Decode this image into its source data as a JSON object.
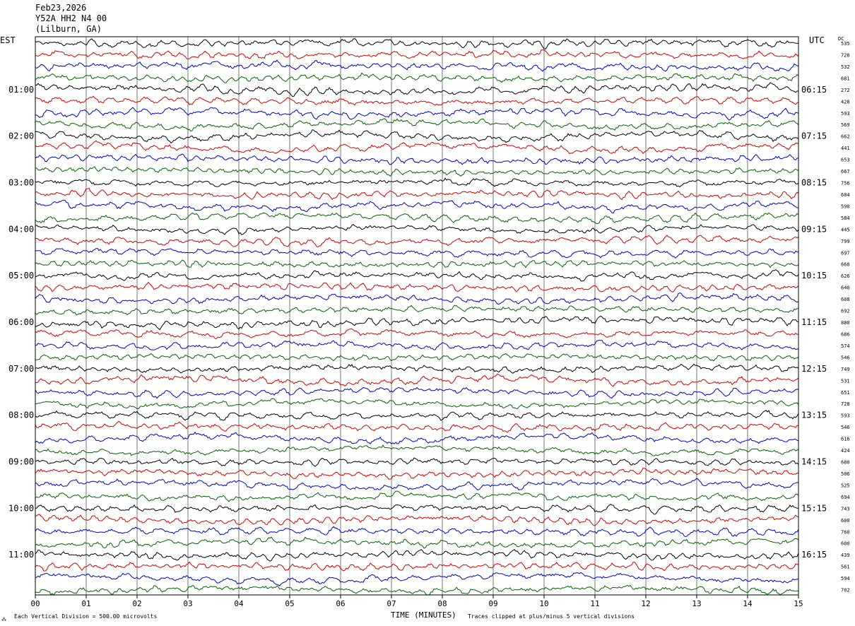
{
  "header": {
    "date": "Feb23,2026",
    "station": "Y52A HH2 N4 00",
    "location": "(Lilburn, GA)"
  },
  "axes": {
    "left_timezone": "EST",
    "right_timezone": "UTC",
    "dc_label": "DC",
    "xlabel": "TIME (MINUTES)"
  },
  "footer": {
    "scale_note": "Each Vertical Division =  500.00 microvolts",
    "clip_note": "Traces clipped at plus/minus 5 vertical divisions"
  },
  "colors": {
    "cycle": [
      "#000000",
      "#d40000",
      "#0000c8",
      "#006400"
    ],
    "grid": "#555555"
  },
  "chart_data": {
    "type": "line",
    "title": "",
    "xlabel": "TIME (MINUTES)",
    "ylabel": "",
    "xlim": [
      0,
      15
    ],
    "x_ticks": [
      "00",
      "01",
      "02",
      "03",
      "04",
      "05",
      "06",
      "07",
      "08",
      "09",
      "10",
      "11",
      "12",
      "13",
      "14",
      "15"
    ],
    "trace_count": 48,
    "left_hour_labels": [
      "01:00",
      "02:00",
      "03:00",
      "04:00",
      "05:00",
      "06:00",
      "07:00",
      "08:00",
      "09:00",
      "10:00",
      "11:00"
    ],
    "right_hour_labels": [
      "06:15",
      "07:15",
      "08:15",
      "09:15",
      "10:15",
      "11:15",
      "12:15",
      "13:15",
      "14:15",
      "15:15",
      "16:15"
    ],
    "dc_offsets": [
      535,
      728,
      532,
      681,
      272,
      428,
      593,
      569,
      662,
      441,
      653,
      667,
      756,
      604,
      590,
      584,
      445,
      799,
      697,
      668,
      626,
      640,
      608,
      692,
      800,
      686,
      574,
      546,
      749,
      531,
      651,
      728,
      593,
      546,
      616,
      424,
      680,
      506,
      525,
      694,
      743,
      600,
      760,
      600,
      439,
      561,
      594,
      702
    ]
  }
}
